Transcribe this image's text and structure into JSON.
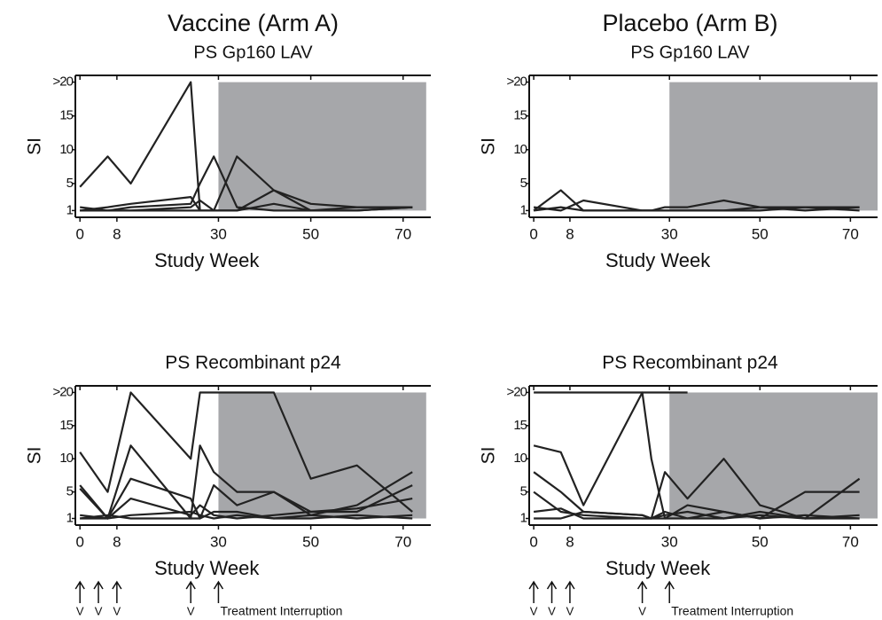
{
  "chart_data": [
    {
      "type": "line",
      "title": "Vaccine (Arm A)",
      "subtitle": "PS Gp160 LAV",
      "y_label": "SI",
      "x_label": "Study Week",
      "x": [
        0,
        6,
        11,
        24,
        26,
        29,
        34,
        42,
        50,
        60,
        72
      ],
      "series": [
        {
          "color": "#222222",
          "values": [
            4.5,
            9,
            5,
            20,
            1,
            null,
            null,
            null,
            null,
            null,
            null
          ]
        },
        {
          "color": "#222222",
          "values": [
            1,
            1,
            1.5,
            2,
            5,
            9,
            1.5,
            1,
            1,
            1,
            1.5
          ]
        },
        {
          "color": "#222222",
          "values": [
            1.5,
            1,
            1,
            1,
            1,
            1,
            9,
            4,
            1,
            1,
            1.5
          ]
        },
        {
          "color": "#222222",
          "values": [
            1,
            1.5,
            2,
            3,
            1,
            1,
            1,
            4,
            2,
            1.5,
            1.5
          ]
        },
        {
          "color": "#222222",
          "values": [
            1,
            1,
            1,
            1.5,
            2.5,
            1,
            1,
            2,
            1,
            1.5,
            1.5
          ]
        }
      ],
      "xlim": [
        -1,
        76
      ],
      "xticks": [
        0,
        8,
        30,
        50,
        70
      ],
      "ylim": [
        0,
        21
      ],
      "yticks": [
        1,
        5,
        10,
        15,
        {
          "value": 20,
          "label": ">20"
        }
      ],
      "shade_x": [
        30,
        75
      ],
      "shade_y": [
        1,
        20
      ],
      "shade_color": "#a6a7aa"
    },
    {
      "type": "line",
      "title": "Placebo (Arm B)",
      "subtitle": "PS Gp160 LAV",
      "y_label": "SI",
      "x_label": "Study Week",
      "x": [
        0,
        6,
        11,
        24,
        26,
        29,
        34,
        42,
        50,
        60,
        72
      ],
      "series": [
        {
          "color": "#222222",
          "values": [
            1.5,
            1,
            2.5,
            1,
            1,
            1.5,
            1.5,
            2.5,
            1.5,
            1,
            1.5
          ]
        },
        {
          "color": "#222222",
          "values": [
            1,
            1.5,
            1,
            1,
            1,
            1,
            1,
            1,
            1.5,
            1.5,
            1
          ]
        },
        {
          "color": "#222222",
          "values": [
            1,
            4,
            1,
            1,
            1,
            1,
            1,
            1,
            1,
            1.5,
            1.5
          ]
        }
      ],
      "xlim": [
        -1,
        76
      ],
      "xticks": [
        0,
        8,
        30,
        50,
        70
      ],
      "ylim": [
        0,
        21
      ],
      "yticks": [
        1,
        5,
        10,
        15,
        {
          "value": 20,
          "label": ">20"
        }
      ],
      "shade_x": [
        30,
        76
      ],
      "shade_y": [
        1,
        20
      ],
      "shade_color": "#a6a7aa"
    },
    {
      "type": "line",
      "title": "PS Recombinant p24",
      "y_label": "SI",
      "x_label": "Study Week",
      "x": [
        0,
        6,
        11,
        24,
        26,
        29,
        34,
        42,
        50,
        60,
        72
      ],
      "series": [
        {
          "color": "#222222",
          "values": [
            11,
            5,
            20,
            10,
            20,
            20,
            20,
            20,
            7,
            9,
            2
          ]
        },
        {
          "color": "#222222",
          "values": [
            6,
            1,
            12,
            1,
            12,
            8,
            5,
            5,
            1.5,
            3,
            8
          ]
        },
        {
          "color": "#222222",
          "values": [
            5.5,
            1,
            7,
            4,
            1,
            6,
            3,
            5,
            2,
            2,
            6
          ]
        },
        {
          "color": "#222222",
          "values": [
            1,
            1,
            4,
            1.5,
            3,
            1.5,
            1,
            1.5,
            2,
            2.5,
            4
          ]
        },
        {
          "color": "#222222",
          "values": [
            1,
            1.5,
            1,
            1,
            1,
            2,
            2,
            1,
            1.5,
            1,
            1.5
          ]
        },
        {
          "color": "#222222",
          "values": [
            1.5,
            1,
            1.5,
            2,
            1.5,
            1,
            1.5,
            1,
            1,
            1.5,
            1
          ]
        }
      ],
      "xlim": [
        -1,
        76
      ],
      "xticks": [
        0,
        8,
        30,
        50,
        70
      ],
      "ylim": [
        0,
        21
      ],
      "yticks": [
        1,
        5,
        10,
        15,
        {
          "value": 20,
          "label": ">20"
        }
      ],
      "shade_x": [
        30,
        75
      ],
      "shade_y": [
        1,
        20
      ],
      "shade_color": "#a6a7aa",
      "annotations": [
        {
          "x": 0,
          "text": "V"
        },
        {
          "x": 4,
          "text": "V"
        },
        {
          "x": 8,
          "text": "V"
        },
        {
          "x": 24,
          "text": "V"
        },
        {
          "x": 30,
          "text": "Treatment Interruption"
        }
      ]
    },
    {
      "type": "line",
      "title": "PS Recombinant p24",
      "y_label": "SI",
      "x_label": "Study Week",
      "x": [
        0,
        6,
        11,
        24,
        26,
        29,
        34,
        42,
        50,
        60,
        72
      ],
      "series": [
        {
          "color": "#222222",
          "values": [
            20,
            20,
            20,
            20,
            20,
            20,
            20,
            null,
            null,
            null,
            null
          ]
        },
        {
          "color": "#222222",
          "values": [
            12,
            11,
            3,
            20,
            10,
            1,
            3,
            2,
            1,
            5,
            5
          ]
        },
        {
          "color": "#222222",
          "values": [
            8,
            5,
            2,
            1.5,
            1,
            8,
            4,
            10,
            3,
            1,
            7
          ]
        },
        {
          "color": "#222222",
          "values": [
            5,
            2,
            1.5,
            1,
            1,
            2,
            1,
            1,
            2,
            1,
            1.5
          ]
        },
        {
          "color": "#222222",
          "values": [
            2,
            2.5,
            1,
            1,
            1,
            1.5,
            2,
            1,
            1.5,
            1,
            1
          ]
        },
        {
          "color": "#222222",
          "values": [
            1,
            1,
            2,
            1.5,
            1,
            1,
            1,
            2,
            1,
            1.5,
            1
          ]
        }
      ],
      "xlim": [
        -1,
        76
      ],
      "xticks": [
        0,
        8,
        30,
        50,
        70
      ],
      "ylim": [
        0,
        21
      ],
      "yticks": [
        1,
        5,
        10,
        15,
        {
          "value": 20,
          "label": ">20"
        }
      ],
      "shade_x": [
        30,
        76
      ],
      "shade_y": [
        1,
        20
      ],
      "shade_color": "#a6a7aa",
      "annotations": [
        {
          "x": 0,
          "text": "V"
        },
        {
          "x": 4,
          "text": "V"
        },
        {
          "x": 8,
          "text": "V"
        },
        {
          "x": 24,
          "text": "V"
        },
        {
          "x": 30,
          "text": "Treatment Interruption"
        }
      ]
    }
  ]
}
